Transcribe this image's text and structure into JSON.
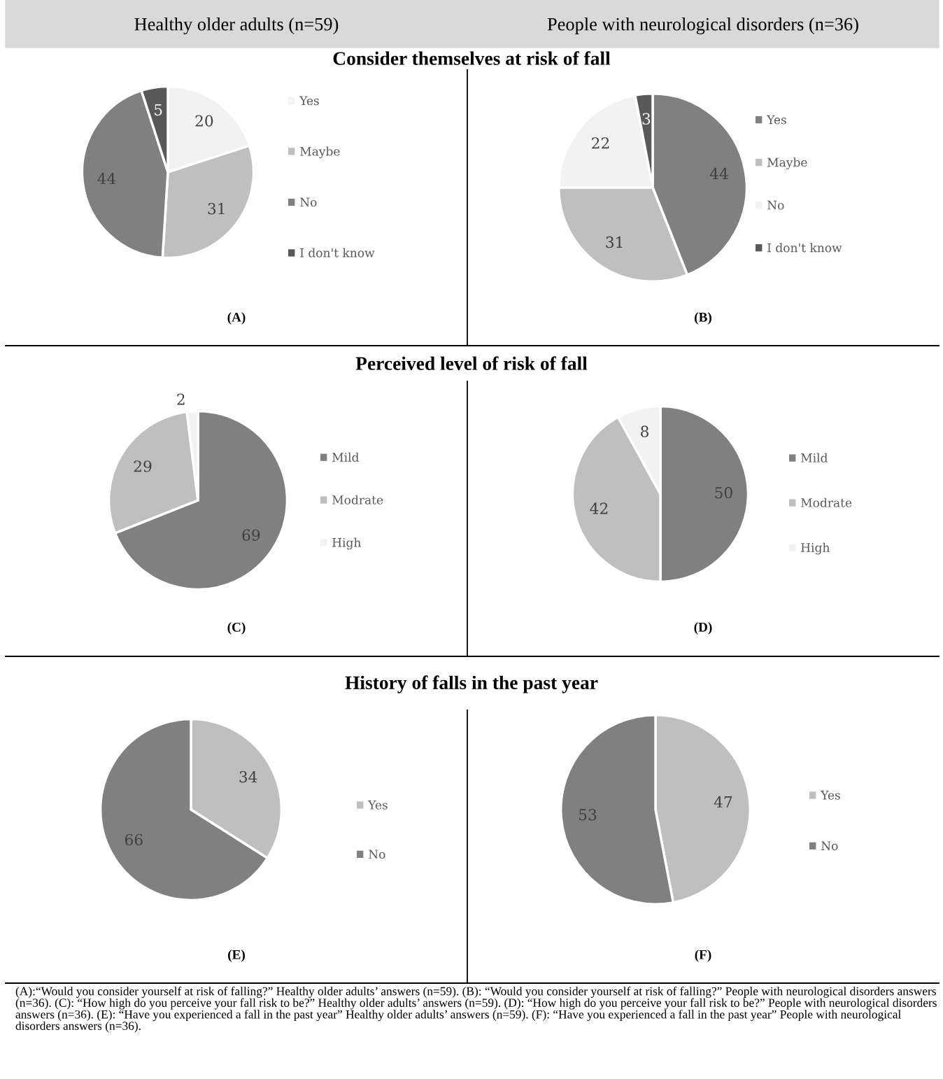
{
  "chart_data": [
    {
      "type": "pie",
      "title": "Consider themselves at risk of fall",
      "subtitle": "Healthy older adults (n=59)",
      "categories": [
        "Yes",
        "Maybe",
        "No",
        "I don't know"
      ],
      "values": [
        20,
        31,
        44,
        5
      ],
      "colors": [
        "#f2f2f2",
        "#bfbfbf",
        "#808080",
        "#595959"
      ],
      "legend": "right",
      "data_labels": true,
      "annotations": [
        "(A)"
      ]
    },
    {
      "type": "pie",
      "subtitle": "People with neurological disorders (n=36)",
      "categories": [
        "Yes",
        "Maybe",
        "No",
        "I don't know"
      ],
      "values": [
        44,
        31,
        22,
        3
      ],
      "colors": [
        "#808080",
        "#bfbfbf",
        "#f2f2f2",
        "#595959"
      ],
      "legend": "right",
      "data_labels": true,
      "annotations": [
        "(B)"
      ]
    },
    {
      "type": "pie",
      "title": "Perceived level of risk of fall",
      "categories": [
        "Mild",
        "Modrate",
        "High"
      ],
      "values": [
        69,
        29,
        2
      ],
      "colors": [
        "#808080",
        "#bfbfbf",
        "#f2f2f2"
      ],
      "legend": "right",
      "data_labels": true,
      "annotations": [
        "(C)"
      ]
    },
    {
      "type": "pie",
      "categories": [
        "Mild",
        "Modrate",
        "High"
      ],
      "values": [
        50,
        42,
        8
      ],
      "colors": [
        "#808080",
        "#bfbfbf",
        "#f2f2f2"
      ],
      "legend": "right",
      "data_labels": true,
      "annotations": [
        "(D)"
      ]
    },
    {
      "type": "pie",
      "title": "History of falls in the past year",
      "categories": [
        "Yes",
        "No"
      ],
      "values": [
        34,
        66
      ],
      "colors": [
        "#bfbfbf",
        "#808080"
      ],
      "legend": "right",
      "data_labels": true,
      "annotations": [
        "(E)"
      ]
    },
    {
      "type": "pie",
      "categories": [
        "Yes",
        "No"
      ],
      "values": [
        47,
        53
      ],
      "colors": [
        "#bfbfbf",
        "#808080"
      ],
      "legend": "right",
      "data_labels": true,
      "annotations": [
        "(F)",
        "(A):“Would you consider yourself at risk of falling?” Healthy older adults’ answers (n=59). (B): “Would you consider yourself at risk of falling?” People with neurological disorders answers (n=36). (C): “How high do you perceive your fall risk to be?” Healthy older adults’ answers (n=59). (D): “How high do you perceive your fall risk to be?” People with neurological disorders answers (n=36). (E): “Have you experienced a fall in the past year” Healthy older adults’ answers (n=59). (F): “Have you experienced a fall in the past year” People with neurological disorders answers (n=36)."
      ]
    }
  ]
}
